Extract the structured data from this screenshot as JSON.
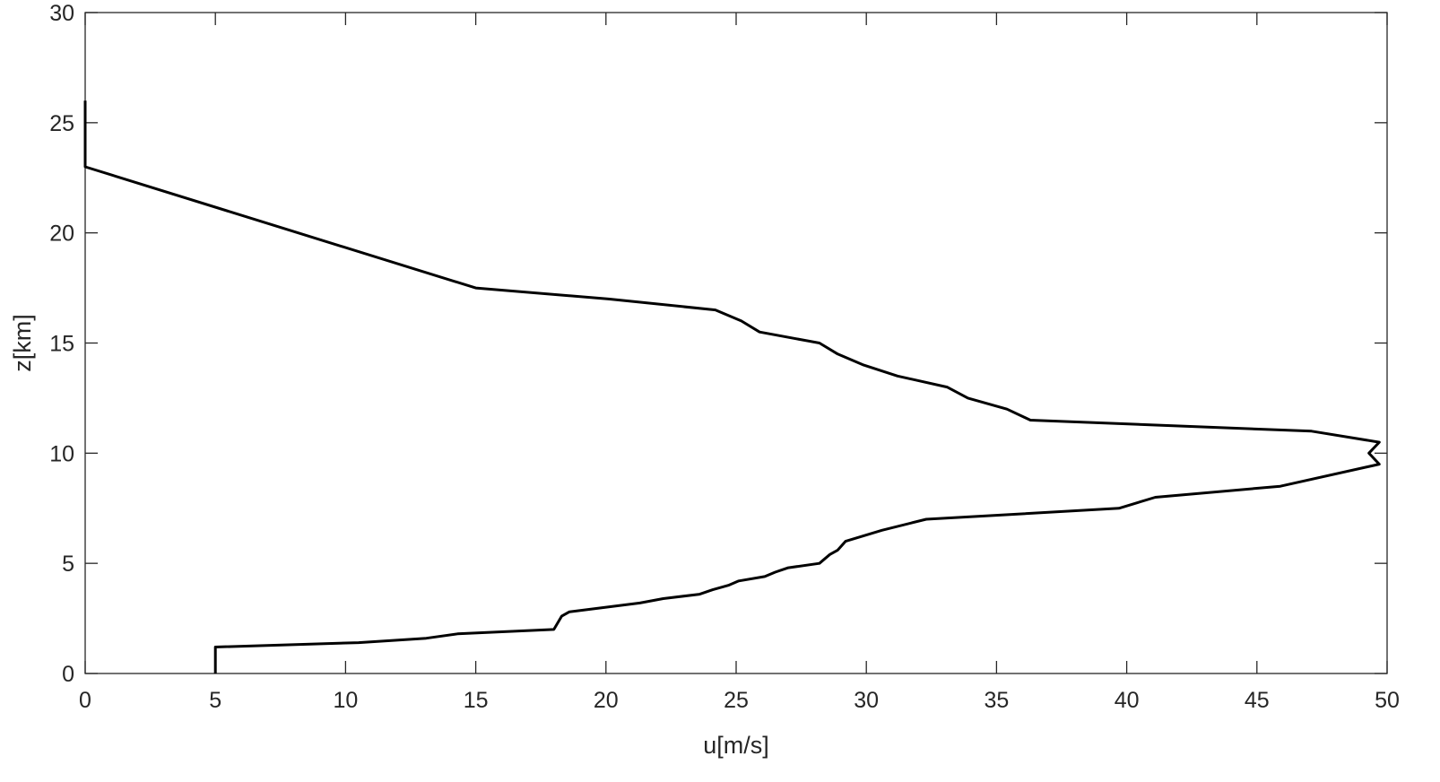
{
  "chart_data": {
    "type": "line",
    "title": "",
    "xlabel": "u[m/s]",
    "ylabel": "z[km]",
    "xlim": [
      0,
      50
    ],
    "ylim": [
      0,
      30
    ],
    "xticks": [
      0,
      5,
      10,
      15,
      20,
      25,
      30,
      35,
      40,
      45,
      50
    ],
    "yticks": [
      0,
      5,
      10,
      15,
      20,
      25,
      30
    ],
    "grid": false,
    "legend": "none",
    "colors": {
      "line": "#000000",
      "axes": "#262626"
    },
    "series": [
      {
        "x": [
          5,
          5,
          10.5,
          13.1,
          14.3,
          18.0,
          18.3,
          18.6,
          21.3,
          22.2,
          23.6,
          24.1,
          24.7,
          25.1,
          26.1,
          26.5,
          27.0,
          28.2,
          28.6,
          28.9,
          29.2,
          30.6,
          32.3,
          39.7,
          41.1,
          45.9,
          49.7,
          49.3,
          49.7,
          47.1,
          36.3,
          35.4,
          33.9,
          33.1,
          31.2,
          29.9,
          28.9,
          28.2,
          25.9,
          25.2,
          24.2,
          20.1,
          15.0,
          0,
          0
        ],
        "y": [
          0,
          1.2,
          1.4,
          1.6,
          1.8,
          2.0,
          2.6,
          2.8,
          3.2,
          3.4,
          3.6,
          3.8,
          4.0,
          4.2,
          4.4,
          4.6,
          4.8,
          5.0,
          5.4,
          5.6,
          6.0,
          6.5,
          7.0,
          7.5,
          8.0,
          8.5,
          9.5,
          10.0,
          10.5,
          11.0,
          11.5,
          12.0,
          12.5,
          13.0,
          13.5,
          14.0,
          14.5,
          15.0,
          15.5,
          16.0,
          16.5,
          17.0,
          17.5,
          23.0,
          26.0
        ]
      }
    ]
  }
}
